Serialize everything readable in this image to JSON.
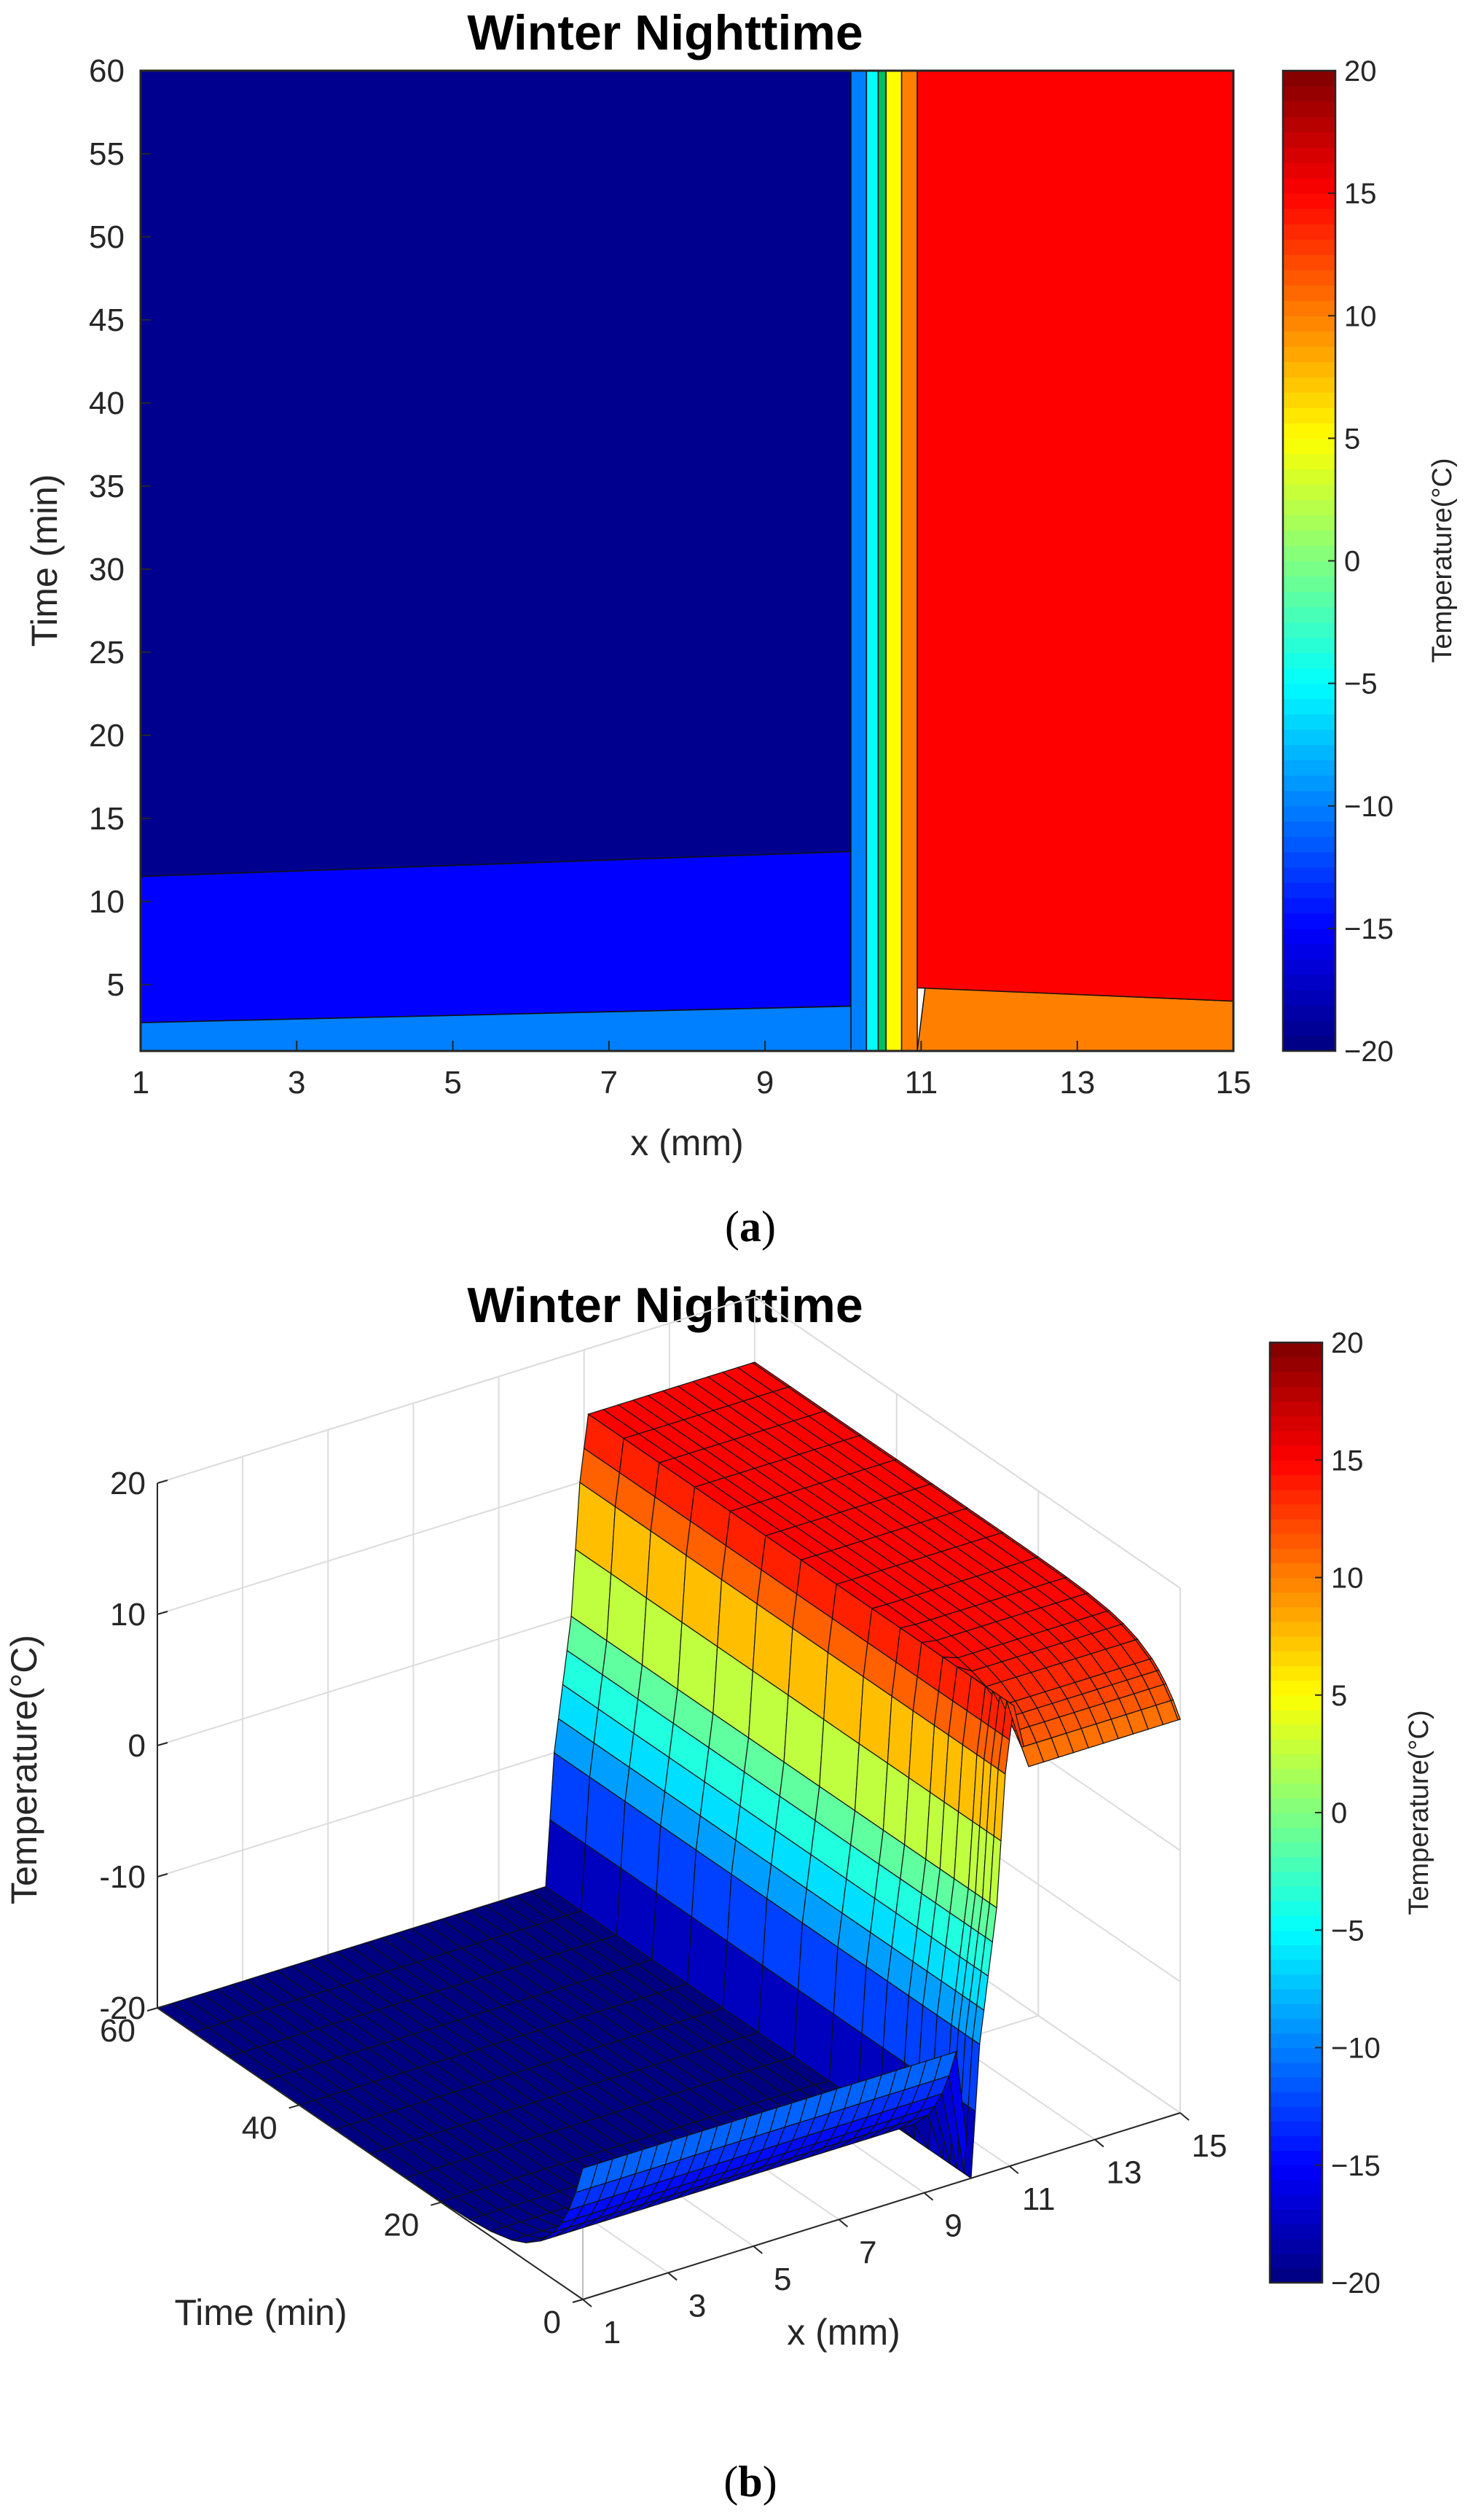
{
  "chart_data": [
    {
      "type": "contour",
      "panel_label_prefix": "(",
      "panel_label_letter": "a",
      "panel_label_suffix": ")",
      "title": "Winter Nighttime",
      "xlabel": "x (mm)",
      "ylabel": "Time (min)",
      "xlim": [
        1,
        15
      ],
      "ylim": [
        1,
        60
      ],
      "xticks": [
        1,
        3,
        5,
        7,
        9,
        11,
        13,
        15
      ],
      "yticks": [
        5,
        10,
        15,
        20,
        25,
        30,
        35,
        40,
        45,
        50,
        55,
        60
      ],
      "colorbar": {
        "label": "Temperature(°C)",
        "range": [
          -20,
          20
        ],
        "ticks": [
          20,
          15,
          10,
          5,
          0,
          -5,
          -10,
          -15,
          -20
        ]
      },
      "regions": [
        {
          "temperature": -20,
          "color": "#00008f",
          "points": [
            [
              1,
              11.5
            ],
            [
              10.1,
              13
            ],
            [
              10.1,
              60
            ],
            [
              1,
              60
            ]
          ]
        },
        {
          "temperature": -15,
          "color": "#0000ff",
          "points": [
            [
              1,
              2.7
            ],
            [
              10.1,
              3.7
            ],
            [
              10.1,
              13
            ],
            [
              1,
              11.5
            ]
          ]
        },
        {
          "temperature": -10,
          "color": "#0080ff",
          "points": [
            [
              1,
              1
            ],
            [
              10.2,
              1
            ],
            [
              10.2,
              3.7
            ],
            [
              1,
              2.7
            ]
          ]
        },
        {
          "temperature": -10,
          "color": "#0080ff",
          "points": [
            [
              10.1,
              1
            ],
            [
              10.3,
              1
            ],
            [
              10.3,
              60
            ],
            [
              10.1,
              60
            ]
          ]
        },
        {
          "temperature": -5,
          "color": "#00ffff",
          "points": [
            [
              10.3,
              1
            ],
            [
              10.45,
              1
            ],
            [
              10.45,
              60
            ],
            [
              10.3,
              60
            ]
          ]
        },
        {
          "temperature": 0,
          "color": "#00c060",
          "points": [
            [
              10.45,
              1
            ],
            [
              10.55,
              1
            ],
            [
              10.55,
              60
            ],
            [
              10.45,
              60
            ]
          ]
        },
        {
          "temperature": 5,
          "color": "#ffff00",
          "points": [
            [
              10.55,
              1
            ],
            [
              10.75,
              1
            ],
            [
              10.75,
              60
            ],
            [
              10.55,
              60
            ]
          ]
        },
        {
          "temperature": 10,
          "color": "#ff8000",
          "points": [
            [
              10.75,
              1
            ],
            [
              10.95,
              1
            ],
            [
              10.95,
              60
            ],
            [
              10.75,
              60
            ]
          ]
        },
        {
          "temperature": 10,
          "color": "#ff8000",
          "points": [
            [
              10.95,
              1
            ],
            [
              15,
              1
            ],
            [
              15,
              4
            ],
            [
              11.05,
              4.8
            ]
          ]
        },
        {
          "temperature": 15,
          "color": "#ff0000",
          "points": [
            [
              10.95,
              4.8
            ],
            [
              15,
              4
            ],
            [
              15,
              60
            ],
            [
              10.95,
              60
            ]
          ]
        }
      ]
    },
    {
      "type": "surface",
      "panel_label_prefix": "(",
      "panel_label_letter": "b",
      "panel_label_suffix": ")",
      "title": "Winter Nighttime",
      "xlabel": "x (mm)",
      "ylabel": "Time (min)",
      "zlabel": "Temperature(°C)",
      "xlim": [
        1,
        15
      ],
      "ylim": [
        0,
        60
      ],
      "zlim": [
        -20,
        20
      ],
      "xticks": [
        1,
        3,
        5,
        7,
        9,
        11,
        13,
        15
      ],
      "yticks": [
        0,
        20,
        40,
        60
      ],
      "zticks": [
        -20,
        -10,
        0,
        10,
        20
      ],
      "colorbar": {
        "label": "Temperature(°C)",
        "range": [
          -20,
          20
        ],
        "ticks": [
          20,
          15,
          10,
          5,
          0,
          -5,
          -10,
          -15,
          -20
        ]
      },
      "surface_profile": {
        "x": [
          1,
          10.1,
          10.3,
          10.5,
          10.7,
          10.9,
          11.1,
          15
        ],
        "temperature_at_t60": [
          -20,
          -20,
          -10,
          -5,
          0,
          10,
          15,
          15
        ],
        "colors": [
          "#00008f",
          "#00008f",
          "#0080ff",
          "#00ffff",
          "#00c060",
          "#ff8000",
          "#ff0000",
          "#ff0000"
        ]
      }
    }
  ]
}
